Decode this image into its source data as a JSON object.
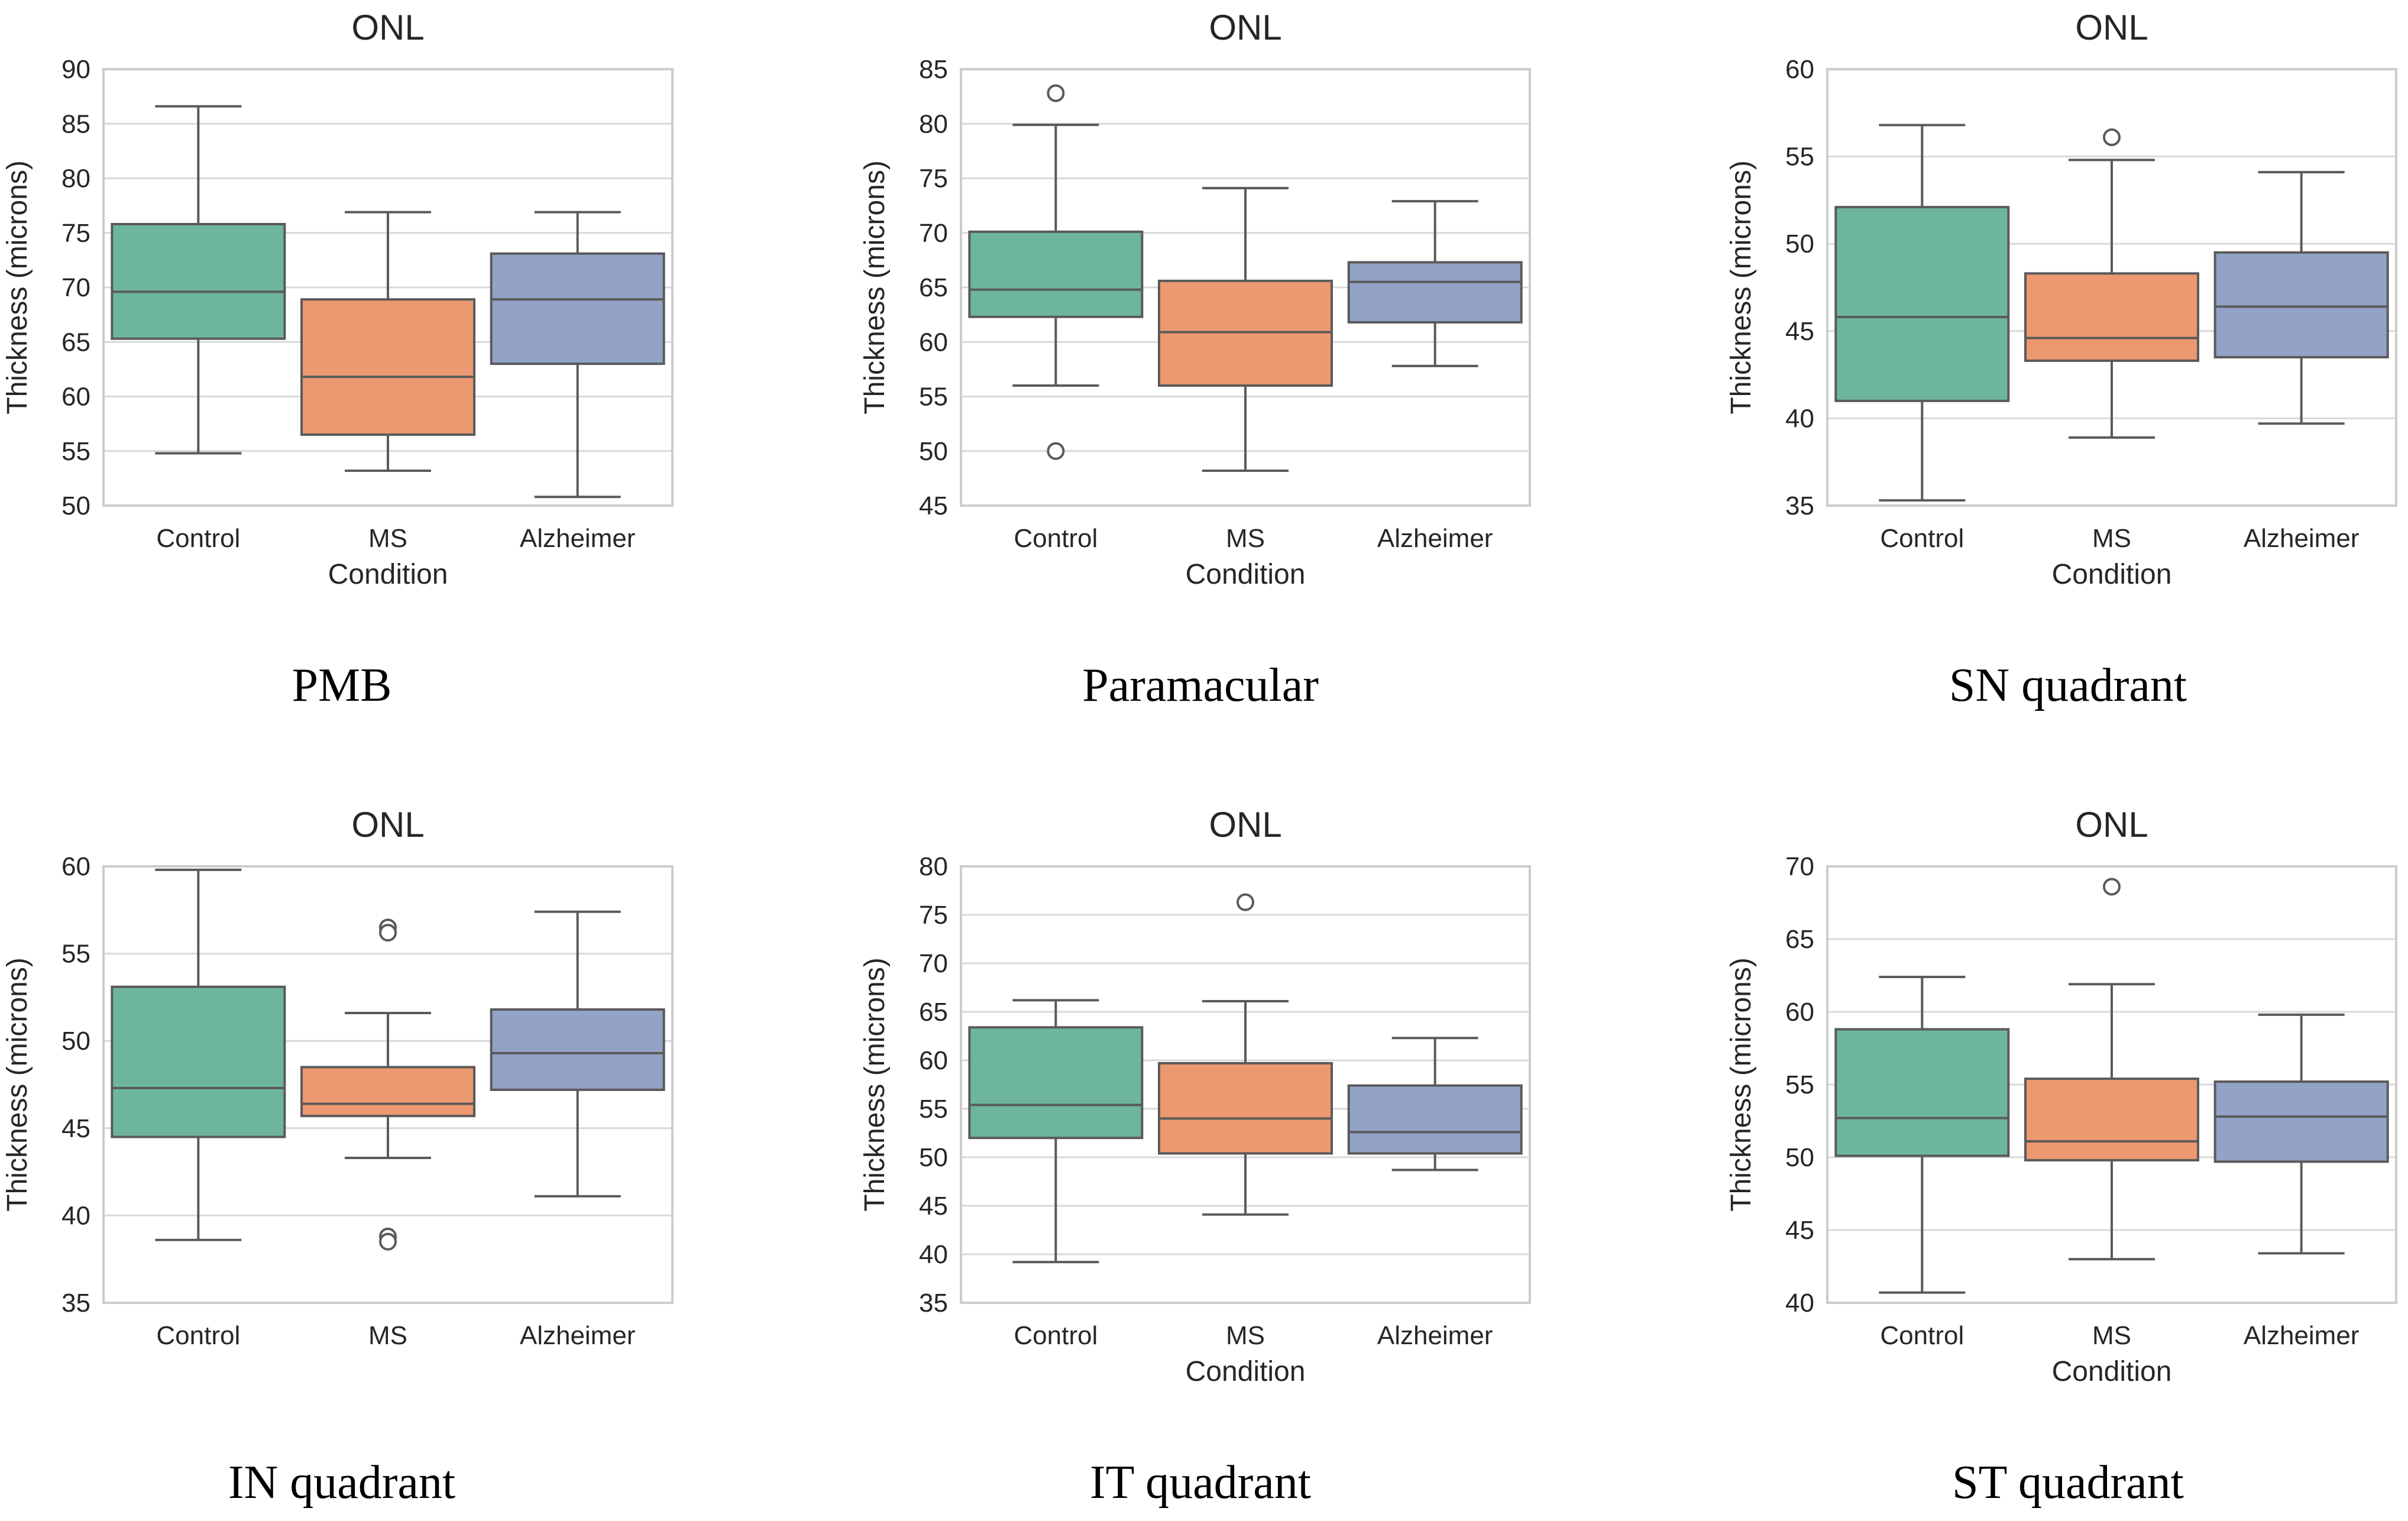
{
  "chart_data": [
    {
      "type": "box",
      "title": "ONL",
      "caption": "PMB",
      "xlabel": "Condition",
      "ylabel": "Thickness (microns)",
      "ylim": [
        50,
        90
      ],
      "yticks": [
        50,
        55,
        60,
        65,
        70,
        75,
        80,
        85,
        90
      ],
      "grid": true,
      "categories": [
        "Control",
        "MS",
        "Alzheimer"
      ],
      "boxes": [
        {
          "whislo": 54.8,
          "q1": 65.3,
          "med": 69.6,
          "q3": 75.8,
          "whishi": 86.6,
          "fliers": []
        },
        {
          "whislo": 53.2,
          "q1": 56.5,
          "med": 61.8,
          "q3": 68.9,
          "whishi": 76.9,
          "fliers": []
        },
        {
          "whislo": 50.8,
          "q1": 63.0,
          "med": 68.9,
          "q3": 73.1,
          "whishi": 76.9,
          "fliers": []
        }
      ]
    },
    {
      "type": "box",
      "title": "ONL",
      "caption": "Paramacular",
      "xlabel": "Condition",
      "ylabel": "Thickness (microns)",
      "ylim": [
        45,
        85
      ],
      "yticks": [
        45,
        50,
        55,
        60,
        65,
        70,
        75,
        80,
        85
      ],
      "grid": true,
      "categories": [
        "Control",
        "MS",
        "Alzheimer"
      ],
      "boxes": [
        {
          "whislo": 56.0,
          "q1": 62.3,
          "med": 64.8,
          "q3": 70.1,
          "whishi": 79.9,
          "fliers": [
            82.8,
            50.0
          ]
        },
        {
          "whislo": 48.2,
          "q1": 56.0,
          "med": 60.9,
          "q3": 65.6,
          "whishi": 74.1,
          "fliers": []
        },
        {
          "whislo": 57.8,
          "q1": 61.8,
          "med": 65.5,
          "q3": 67.3,
          "whishi": 72.9,
          "fliers": []
        }
      ]
    },
    {
      "type": "box",
      "title": "ONL",
      "caption": "SN quadrant",
      "xlabel": "Condition",
      "ylabel": "Thickness (microns)",
      "ylim": [
        35,
        60
      ],
      "yticks": [
        35,
        40,
        45,
        50,
        55,
        60
      ],
      "grid": true,
      "categories": [
        "Control",
        "MS",
        "Alzheimer"
      ],
      "boxes": [
        {
          "whislo": 35.3,
          "q1": 41.0,
          "med": 45.8,
          "q3": 52.1,
          "whishi": 56.8,
          "fliers": []
        },
        {
          "whislo": 38.9,
          "q1": 43.3,
          "med": 44.6,
          "q3": 48.3,
          "whishi": 54.8,
          "fliers": [
            56.1
          ]
        },
        {
          "whislo": 39.7,
          "q1": 43.5,
          "med": 46.4,
          "q3": 49.5,
          "whishi": 54.1,
          "fliers": []
        }
      ]
    },
    {
      "type": "box",
      "title": "ONL",
      "caption": "IN quadrant",
      "xlabel": "",
      "ylabel": "Thickness (microns)",
      "ylim": [
        35,
        60
      ],
      "yticks": [
        35,
        40,
        45,
        50,
        55,
        60
      ],
      "grid": true,
      "categories": [
        "Control",
        "MS",
        "Alzheimer"
      ],
      "boxes": [
        {
          "whislo": 38.6,
          "q1": 44.5,
          "med": 47.3,
          "q3": 53.1,
          "whishi": 59.8,
          "fliers": []
        },
        {
          "whislo": 43.3,
          "q1": 45.7,
          "med": 46.4,
          "q3": 48.5,
          "whishi": 51.6,
          "fliers": [
            56.5,
            56.2,
            38.8,
            38.5
          ]
        },
        {
          "whislo": 41.1,
          "q1": 47.2,
          "med": 49.3,
          "q3": 51.8,
          "whishi": 57.4,
          "fliers": []
        }
      ]
    },
    {
      "type": "box",
      "title": "ONL",
      "caption": "IT quadrant",
      "xlabel": "Condition",
      "ylabel": "Thickness (microns)",
      "ylim": [
        35,
        80
      ],
      "yticks": [
        35,
        40,
        45,
        50,
        55,
        60,
        65,
        70,
        75,
        80
      ],
      "grid": true,
      "categories": [
        "Control",
        "MS",
        "Alzheimer"
      ],
      "boxes": [
        {
          "whislo": 39.2,
          "q1": 52.0,
          "med": 55.4,
          "q3": 63.4,
          "whishi": 66.2,
          "fliers": []
        },
        {
          "whislo": 44.1,
          "q1": 50.4,
          "med": 54.0,
          "q3": 59.7,
          "whishi": 66.1,
          "fliers": [
            76.3
          ]
        },
        {
          "whislo": 48.7,
          "q1": 50.4,
          "med": 52.6,
          "q3": 57.4,
          "whishi": 62.3,
          "fliers": []
        }
      ]
    },
    {
      "type": "box",
      "title": "ONL",
      "caption": "ST quadrant",
      "xlabel": "Condition",
      "ylabel": "Thickness (microns)",
      "ylim": [
        40,
        70
      ],
      "yticks": [
        40,
        45,
        50,
        55,
        60,
        65,
        70
      ],
      "grid": true,
      "categories": [
        "Control",
        "MS",
        "Alzheimer"
      ],
      "boxes": [
        {
          "whislo": 40.7,
          "q1": 50.1,
          "med": 52.7,
          "q3": 58.8,
          "whishi": 62.4,
          "fliers": []
        },
        {
          "whislo": 43.0,
          "q1": 49.8,
          "med": 51.1,
          "q3": 55.4,
          "whishi": 61.9,
          "fliers": [
            68.6
          ]
        },
        {
          "whislo": 43.4,
          "q1": 49.7,
          "med": 52.8,
          "q3": 55.2,
          "whishi": 59.8,
          "fliers": []
        }
      ]
    }
  ],
  "colors": {
    "box_fills": [
      "#6db69d",
      "#ec9870",
      "#92a3c7"
    ],
    "box_edge": "#5a5a5a",
    "grid": "#d9d9d9",
    "frame": "#cccccc",
    "text": "#262626"
  }
}
